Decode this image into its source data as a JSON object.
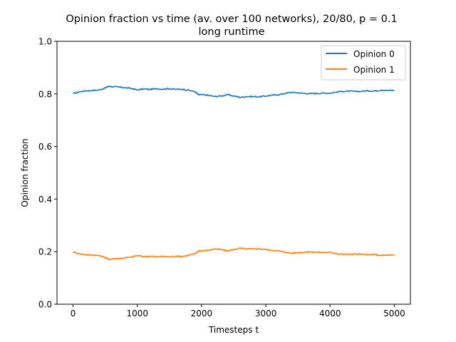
{
  "chart_data": {
    "type": "line",
    "title": "Opinion fraction vs time (av. over 100 networks), 20/80, p = 0.1",
    "subtitle": "long runtime",
    "xlabel": "Timesteps t",
    "ylabel": "Opinion fraction",
    "xlim": [
      -250,
      5250
    ],
    "ylim": [
      0.0,
      1.0
    ],
    "xticks": [
      0,
      1000,
      2000,
      3000,
      4000,
      5000
    ],
    "yticks": [
      0.0,
      0.2,
      0.4,
      0.6,
      0.8,
      1.0
    ],
    "xtick_labels": [
      "0",
      "1000",
      "2000",
      "3000",
      "4000",
      "5000"
    ],
    "ytick_labels": [
      "0.0",
      "0.2",
      "0.4",
      "0.6",
      "0.8",
      "1.0"
    ],
    "grid": false,
    "legend_position": "top-right",
    "series": [
      {
        "name": "Opinion 0",
        "color": "#1f77b4",
        "x": [
          0,
          100,
          200,
          300,
          400,
          500,
          550,
          600,
          700,
          800,
          900,
          1000,
          1100,
          1200,
          1300,
          1400,
          1500,
          1600,
          1700,
          1800,
          1900,
          1950,
          2000,
          2100,
          2200,
          2300,
          2400,
          2500,
          2600,
          2700,
          2800,
          2900,
          3000,
          3100,
          3200,
          3300,
          3400,
          3500,
          3600,
          3700,
          3800,
          3900,
          4000,
          4100,
          4200,
          4300,
          4400,
          4500,
          4600,
          4700,
          4800,
          4900,
          5000
        ],
        "y": [
          0.801,
          0.808,
          0.812,
          0.813,
          0.815,
          0.822,
          0.829,
          0.828,
          0.826,
          0.824,
          0.821,
          0.815,
          0.819,
          0.817,
          0.82,
          0.818,
          0.82,
          0.817,
          0.818,
          0.814,
          0.808,
          0.797,
          0.797,
          0.795,
          0.79,
          0.792,
          0.797,
          0.792,
          0.787,
          0.79,
          0.79,
          0.789,
          0.792,
          0.795,
          0.797,
          0.802,
          0.806,
          0.804,
          0.802,
          0.801,
          0.802,
          0.803,
          0.803,
          0.807,
          0.81,
          0.81,
          0.809,
          0.81,
          0.812,
          0.811,
          0.815,
          0.813,
          0.814
        ]
      },
      {
        "name": "Opinion 1",
        "color": "#ff7f0e",
        "x": [
          0,
          100,
          200,
          300,
          400,
          500,
          550,
          600,
          700,
          800,
          900,
          1000,
          1100,
          1200,
          1300,
          1400,
          1500,
          1600,
          1700,
          1800,
          1900,
          1950,
          2000,
          2100,
          2200,
          2300,
          2400,
          2500,
          2600,
          2700,
          2800,
          2900,
          3000,
          3100,
          3200,
          3300,
          3400,
          3500,
          3600,
          3700,
          3800,
          3900,
          4000,
          4100,
          4200,
          4300,
          4400,
          4500,
          4600,
          4700,
          4800,
          4900,
          5000
        ],
        "y": [
          0.199,
          0.192,
          0.188,
          0.187,
          0.185,
          0.178,
          0.171,
          0.172,
          0.174,
          0.176,
          0.179,
          0.185,
          0.181,
          0.183,
          0.18,
          0.182,
          0.18,
          0.183,
          0.182,
          0.186,
          0.192,
          0.203,
          0.203,
          0.205,
          0.21,
          0.208,
          0.203,
          0.208,
          0.213,
          0.21,
          0.21,
          0.211,
          0.208,
          0.205,
          0.203,
          0.198,
          0.194,
          0.196,
          0.198,
          0.199,
          0.198,
          0.197,
          0.197,
          0.193,
          0.19,
          0.19,
          0.191,
          0.19,
          0.188,
          0.189,
          0.185,
          0.187,
          0.186
        ]
      }
    ]
  }
}
